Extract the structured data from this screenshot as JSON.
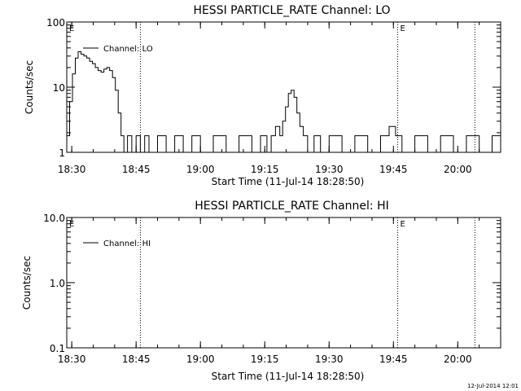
{
  "chart_data": [
    {
      "type": "line",
      "title": "HESSI PARTICLE_RATE Channel: LO",
      "xlabel": "Start Time (11-Jul-14 18:28:50)",
      "ylabel": "Counts/sec",
      "yscale": "log",
      "ylim": [
        1,
        100
      ],
      "y_ticks": [
        "1",
        "10",
        "100"
      ],
      "xlim": [
        "18:28:50",
        "20:10:00"
      ],
      "x_ticks": [
        "18:30",
        "18:45",
        "19:00",
        "19:15",
        "19:30",
        "19:45",
        "20:00"
      ],
      "grid": false,
      "legend_position": "top-left",
      "series": [
        {
          "name": "Channel: LO",
          "x": [
            "18:28:50",
            "18:29:30",
            "18:30:10",
            "18:30:50",
            "18:31:30",
            "18:32:10",
            "18:32:50",
            "18:33:30",
            "18:34:10",
            "18:34:50",
            "18:35:30",
            "18:36:10",
            "18:36:50",
            "18:37:30",
            "18:38:10",
            "18:38:50",
            "18:39:30",
            "18:40:10",
            "18:40:50",
            "18:41:30",
            "18:42:10",
            "18:43:00",
            "18:44:00",
            "18:45:00",
            "18:46:00",
            "18:47:00",
            "18:48:00",
            "18:50:00",
            "18:52:00",
            "18:54:00",
            "18:56:00",
            "18:58:00",
            "19:00:00",
            "19:03:00",
            "19:06:00",
            "19:09:00",
            "19:12:00",
            "19:14:00",
            "19:15:30",
            "19:16:30",
            "19:17:30",
            "19:18:30",
            "19:19:10",
            "19:19:50",
            "19:20:30",
            "19:21:10",
            "19:21:50",
            "19:22:30",
            "19:23:10",
            "19:24:00",
            "19:25:00",
            "19:26:30",
            "19:28:00",
            "19:30:00",
            "19:33:00",
            "19:36:00",
            "19:39:00",
            "19:42:00",
            "19:44:00",
            "19:45:30",
            "19:47:00",
            "19:50:00",
            "19:53:00",
            "19:56:00",
            "19:59:00",
            "20:02:00",
            "20:05:00",
            "20:08:00",
            "20:10:00"
          ],
          "y": [
            1.8,
            6,
            16,
            28,
            35,
            32,
            30,
            28,
            25,
            23,
            20,
            18,
            17,
            19,
            20,
            18,
            14,
            9,
            4,
            1.8,
            1,
            1.8,
            1,
            1.8,
            1,
            1.8,
            1,
            1.8,
            1,
            1.8,
            1,
            1.8,
            1,
            1.8,
            1,
            1.8,
            1,
            1.8,
            1,
            1.8,
            2.5,
            1.8,
            3,
            5,
            8,
            9,
            7,
            4,
            2.5,
            1.8,
            1,
            1.8,
            1,
            1.8,
            1,
            1.8,
            1,
            1.8,
            2.5,
            1.8,
            1,
            1.8,
            1,
            1.8,
            1,
            1.8,
            1,
            1.8,
            1.8
          ]
        }
      ],
      "vertical_markers": [
        "18:46:00",
        "19:46:00",
        "20:04:00"
      ],
      "annotations": [
        "E",
        "E"
      ]
    },
    {
      "type": "line",
      "title": "HESSI PARTICLE_RATE Channel: HI",
      "xlabel": "Start Time (11-Jul-14 18:28:50)",
      "ylabel": "Counts/sec",
      "yscale": "log",
      "ylim": [
        0.1,
        10
      ],
      "y_ticks": [
        "0.1",
        "1.0",
        "10.0"
      ],
      "xlim": [
        "18:28:50",
        "20:10:00"
      ],
      "x_ticks": [
        "18:30",
        "18:45",
        "19:00",
        "19:15",
        "19:30",
        "19:45",
        "20:00"
      ],
      "grid": false,
      "legend_position": "top-left",
      "series": [
        {
          "name": "Channel: HI",
          "x": [],
          "y": []
        }
      ],
      "vertical_markers": [
        "18:46:00",
        "19:46:00",
        "20:04:00"
      ],
      "annotations": [
        "E",
        "E"
      ]
    }
  ],
  "footer": {
    "timestamp": "12-Jul-2014 12:01"
  },
  "colors": {
    "line": "#000000",
    "background": "#ffffff"
  }
}
